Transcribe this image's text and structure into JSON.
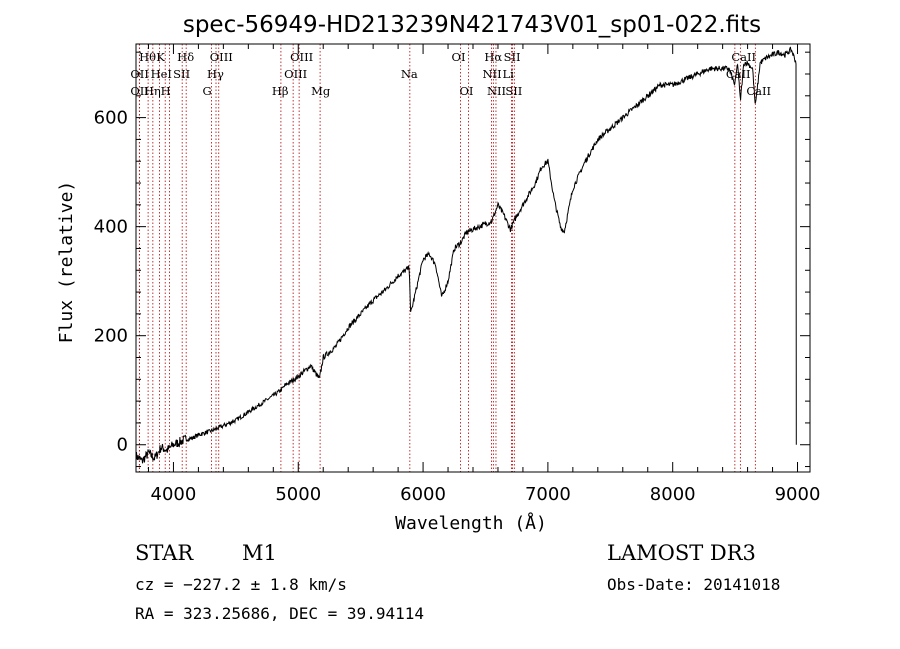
{
  "chart_data": {
    "type": "line",
    "title": "spec-56949-HD213239N421743V01_sp01-022.fits",
    "xlabel": "Wavelength (Å)",
    "ylabel": "Flux (relative)",
    "xlim": [
      3700,
      9100
    ],
    "ylim": [
      -50,
      735
    ],
    "xticks": [
      4000,
      5000,
      6000,
      7000,
      8000,
      9000
    ],
    "yticks": [
      0,
      200,
      400,
      600
    ],
    "series": [
      {
        "name": "spectrum",
        "x": [
          3700,
          3750,
          3800,
          3850,
          3900,
          3950,
          4000,
          4050,
          4100,
          4150,
          4200,
          4300,
          4400,
          4500,
          4600,
          4700,
          4800,
          4860,
          4900,
          5000,
          5100,
          5170,
          5200,
          5300,
          5400,
          5500,
          5600,
          5700,
          5800,
          5890,
          5900,
          5950,
          6000,
          6050,
          6100,
          6150,
          6200,
          6250,
          6300,
          6350,
          6400,
          6450,
          6500,
          6550,
          6600,
          6650,
          6700,
          6750,
          6800,
          6850,
          6900,
          6950,
          7000,
          7050,
          7100,
          7130,
          7200,
          7300,
          7400,
          7500,
          7600,
          7700,
          7800,
          7900,
          8000,
          8100,
          8200,
          8300,
          8400,
          8450,
          8498,
          8520,
          8542,
          8570,
          8600,
          8640,
          8662,
          8700,
          8750,
          8800,
          8850,
          8900,
          8950,
          8990
        ],
        "y": [
          -20,
          -30,
          -15,
          -25,
          -5,
          -10,
          0,
          5,
          10,
          12,
          18,
          25,
          35,
          45,
          60,
          75,
          90,
          100,
          110,
          125,
          145,
          120,
          160,
          180,
          215,
          240,
          265,
          285,
          310,
          325,
          240,
          290,
          340,
          350,
          330,
          270,
          300,
          360,
          370,
          390,
          395,
          400,
          405,
          410,
          440,
          420,
          395,
          420,
          440,
          460,
          480,
          510,
          520,
          450,
          400,
          390,
          470,
          520,
          560,
          580,
          600,
          620,
          640,
          660,
          660,
          670,
          680,
          690,
          690,
          690,
          660,
          700,
          630,
          700,
          700,
          690,
          620,
          700,
          710,
          715,
          720,
          715,
          725,
          700
        ]
      }
    ],
    "lines": [
      {
        "label": "Hθ",
        "x": 3797,
        "row": 1
      },
      {
        "label": "OII",
        "x": 3727,
        "row": 2
      },
      {
        "label": "OII",
        "x": 3727,
        "row": 3
      },
      {
        "label": "K",
        "x": 3934,
        "row": 1
      },
      {
        "label": "HeI",
        "x": 3889,
        "row": 2
      },
      {
        "label": "Hη",
        "x": 3835,
        "row": 3
      },
      {
        "label": "Hδ",
        "x": 4102,
        "row": 1
      },
      {
        "label": "SII",
        "x": 4070,
        "row": 2
      },
      {
        "label": "H",
        "x": 3969,
        "row": 3
      },
      {
        "label": "OIII",
        "x": 4363,
        "row": 1
      },
      {
        "label": "Hγ",
        "x": 4341,
        "row": 2
      },
      {
        "label": "G",
        "x": 4305,
        "row": 3
      },
      {
        "label": "Hβ",
        "x": 4861,
        "row": 3
      },
      {
        "label": "OIII",
        "x": 5007,
        "row": 1
      },
      {
        "label": "OIII",
        "x": 4959,
        "row": 2
      },
      {
        "label": "Mg",
        "x": 5175,
        "row": 3
      },
      {
        "label": "Na",
        "x": 5894,
        "row": 2
      },
      {
        "label": "OI",
        "x": 6300,
        "row": 1
      },
      {
        "label": "OI",
        "x": 6364,
        "row": 3
      },
      {
        "label": "Hα",
        "x": 6563,
        "row": 1
      },
      {
        "label": "SII",
        "x": 6717,
        "row": 1
      },
      {
        "label": "NII",
        "x": 6548,
        "row": 2
      },
      {
        "label": "Li",
        "x": 6708,
        "row": 2
      },
      {
        "label": "NII",
        "x": 6584,
        "row": 3
      },
      {
        "label": "SII",
        "x": 6731,
        "row": 3
      },
      {
        "label": "CaII",
        "x": 8542,
        "row": 1
      },
      {
        "label": "CaII",
        "x": 8498,
        "row": 2
      },
      {
        "label": "CaII",
        "x": 8662,
        "row": 3
      }
    ]
  },
  "info": {
    "class_label": "STAR",
    "subclass": "M1",
    "cz": "cz = −227.2 ± 1.8 km/s",
    "radec": "RA = 323.25686, DEC =  39.94114",
    "survey": "LAMOST DR3",
    "obsdate": "Obs-Date: 20141018"
  }
}
